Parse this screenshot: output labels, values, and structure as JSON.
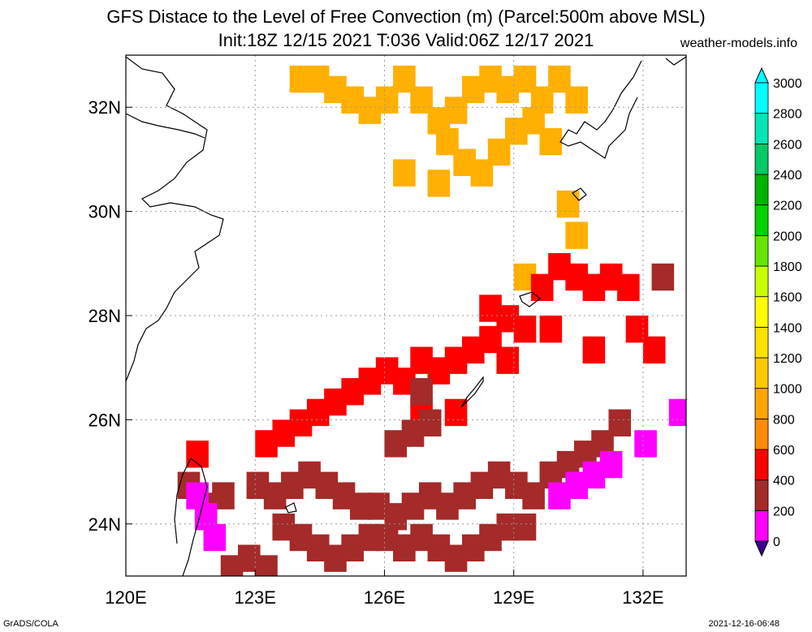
{
  "title_line1": "GFS Distace to the Level of Free Convection (m) (Parcel:500m above MSL)",
  "title_line2": "Init:18Z 12/15 2021 T:036 Valid:06Z 12/17 2021",
  "site": "weather-models.info",
  "footer_left": "GrADS/COLA",
  "footer_right": "2021-12-16-06:48",
  "map": {
    "lon_range": [
      120,
      133
    ],
    "lat_range": [
      23,
      33
    ],
    "lon_ticks": [
      {
        "value": 120,
        "label": "120E"
      },
      {
        "value": 123,
        "label": "123E"
      },
      {
        "value": 126,
        "label": "126E"
      },
      {
        "value": 129,
        "label": "129E"
      },
      {
        "value": 132,
        "label": "132E"
      }
    ],
    "lat_ticks": [
      {
        "value": 24,
        "label": "24N"
      },
      {
        "value": 26,
        "label": "26N"
      },
      {
        "value": 28,
        "label": "28N"
      },
      {
        "value": 30,
        "label": "30N"
      },
      {
        "value": 32,
        "label": "32N"
      }
    ],
    "grid": true
  },
  "colorbar": {
    "levels": [
      "0",
      "200",
      "400",
      "600",
      "800",
      "1000",
      "1200",
      "1400",
      "1600",
      "1800",
      "2000",
      "2200",
      "2400",
      "2600",
      "2800",
      "3000"
    ],
    "colors": [
      "#3c0090",
      "#ff00ff",
      "#a52a2a",
      "#ff0000",
      "#ff8c00",
      "#ffa500",
      "#ffc800",
      "#ffe100",
      "#ffff00",
      "#c8ff00",
      "#64e600",
      "#00d200",
      "#00b400",
      "#00c864",
      "#00e6b4",
      "#00ffff"
    ]
  },
  "fields": [
    {
      "name": "orange-yellow-band-north",
      "color": "#ffb000",
      "value": "800-1000",
      "cells": [
        [
          124,
          32.6
        ],
        [
          124.4,
          32.6
        ],
        [
          124.8,
          32.4
        ],
        [
          125.2,
          32.2
        ],
        [
          125.6,
          32.0
        ],
        [
          126,
          32.2
        ],
        [
          126.4,
          32.6
        ],
        [
          126.8,
          32.2
        ],
        [
          127.2,
          31.8
        ],
        [
          127.6,
          32.0
        ],
        [
          128,
          32.4
        ],
        [
          128.4,
          32.6
        ],
        [
          128.8,
          32.4
        ],
        [
          129.2,
          32.6
        ],
        [
          129.6,
          32.2
        ],
        [
          130,
          32.6
        ],
        [
          130.4,
          32.2
        ],
        [
          127.4,
          31.4
        ],
        [
          127.8,
          31.0
        ],
        [
          128.2,
          30.8
        ],
        [
          128.6,
          31.2
        ],
        [
          129,
          31.6
        ],
        [
          129.4,
          31.8
        ],
        [
          129.8,
          31.4
        ],
        [
          126.4,
          30.8
        ],
        [
          127.2,
          30.6
        ],
        [
          130.2,
          30.2
        ],
        [
          130.4,
          29.6
        ],
        [
          129.2,
          28.8
        ]
      ]
    },
    {
      "name": "red-region",
      "color": "#ff0000",
      "value": "400-600",
      "cells": [
        [
          123.2,
          25.6
        ],
        [
          123.6,
          25.8
        ],
        [
          124,
          26
        ],
        [
          124.4,
          26.2
        ],
        [
          124.8,
          26.4
        ],
        [
          125.2,
          26.6
        ],
        [
          125.6,
          26.8
        ],
        [
          126,
          27
        ],
        [
          126.4,
          26.8
        ],
        [
          126.8,
          27.2
        ],
        [
          127.2,
          27
        ],
        [
          127.6,
          27.2
        ],
        [
          128,
          27.4
        ],
        [
          128.4,
          27.6
        ],
        [
          128.8,
          28
        ],
        [
          129.2,
          27.8
        ],
        [
          128.8,
          27.2
        ],
        [
          127.6,
          26.2
        ],
        [
          126.8,
          26.2
        ],
        [
          128.4,
          28.2
        ],
        [
          129.6,
          28.6
        ],
        [
          130,
          29
        ],
        [
          130.4,
          28.8
        ],
        [
          130.8,
          28.6
        ],
        [
          131.2,
          28.8
        ],
        [
          131.6,
          28.6
        ],
        [
          129.8,
          27.8
        ],
        [
          130.8,
          27.4
        ],
        [
          132.2,
          27.4
        ],
        [
          131.8,
          27.8
        ],
        [
          121.6,
          25.4
        ]
      ]
    },
    {
      "name": "brown-region",
      "color": "#a52a2a",
      "value": "200-400",
      "cells": [
        [
          123,
          24.8
        ],
        [
          123.4,
          24.6
        ],
        [
          123.8,
          24.8
        ],
        [
          124.2,
          25
        ],
        [
          124.6,
          24.8
        ],
        [
          125,
          24.6
        ],
        [
          125.4,
          24.4
        ],
        [
          125.8,
          24.4
        ],
        [
          126.2,
          24.2
        ],
        [
          126.6,
          24.4
        ],
        [
          127,
          24.6
        ],
        [
          127.4,
          24.4
        ],
        [
          127.8,
          24.6
        ],
        [
          128.2,
          24.8
        ],
        [
          128.6,
          25
        ],
        [
          129,
          24.8
        ],
        [
          129.4,
          24.6
        ],
        [
          129.8,
          25
        ],
        [
          130.2,
          25.2
        ],
        [
          130.6,
          25.4
        ],
        [
          131,
          25.6
        ],
        [
          123.6,
          24
        ],
        [
          124,
          23.8
        ],
        [
          124.4,
          23.6
        ],
        [
          124.8,
          23.4
        ],
        [
          125.2,
          23.6
        ],
        [
          125.6,
          23.8
        ],
        [
          126,
          23.8
        ],
        [
          126.4,
          23.6
        ],
        [
          126.8,
          23.8
        ],
        [
          127.2,
          23.6
        ],
        [
          127.6,
          23.4
        ],
        [
          128,
          23.6
        ],
        [
          128.4,
          23.8
        ],
        [
          128.8,
          24
        ],
        [
          129.2,
          24
        ],
        [
          122.4,
          23.2
        ],
        [
          122.8,
          23.4
        ],
        [
          123.2,
          23.2
        ],
        [
          126.2,
          25.6
        ],
        [
          126.6,
          25.8
        ],
        [
          127,
          26
        ],
        [
          126.8,
          26.6
        ],
        [
          131.4,
          26
        ],
        [
          132.4,
          28.8
        ],
        [
          121.8,
          24.4
        ],
        [
          121.4,
          24.8
        ],
        [
          122.2,
          24.6
        ]
      ]
    },
    {
      "name": "magenta-region",
      "color": "#ff00ff",
      "value": "0-200",
      "cells": [
        [
          130,
          24.6
        ],
        [
          130.4,
          24.8
        ],
        [
          130.8,
          25
        ],
        [
          131.2,
          25.2
        ],
        [
          132.8,
          26.2
        ],
        [
          132,
          25.6
        ],
        [
          121.6,
          24.6
        ],
        [
          121.8,
          24.2
        ],
        [
          122,
          23.8
        ]
      ]
    }
  ]
}
